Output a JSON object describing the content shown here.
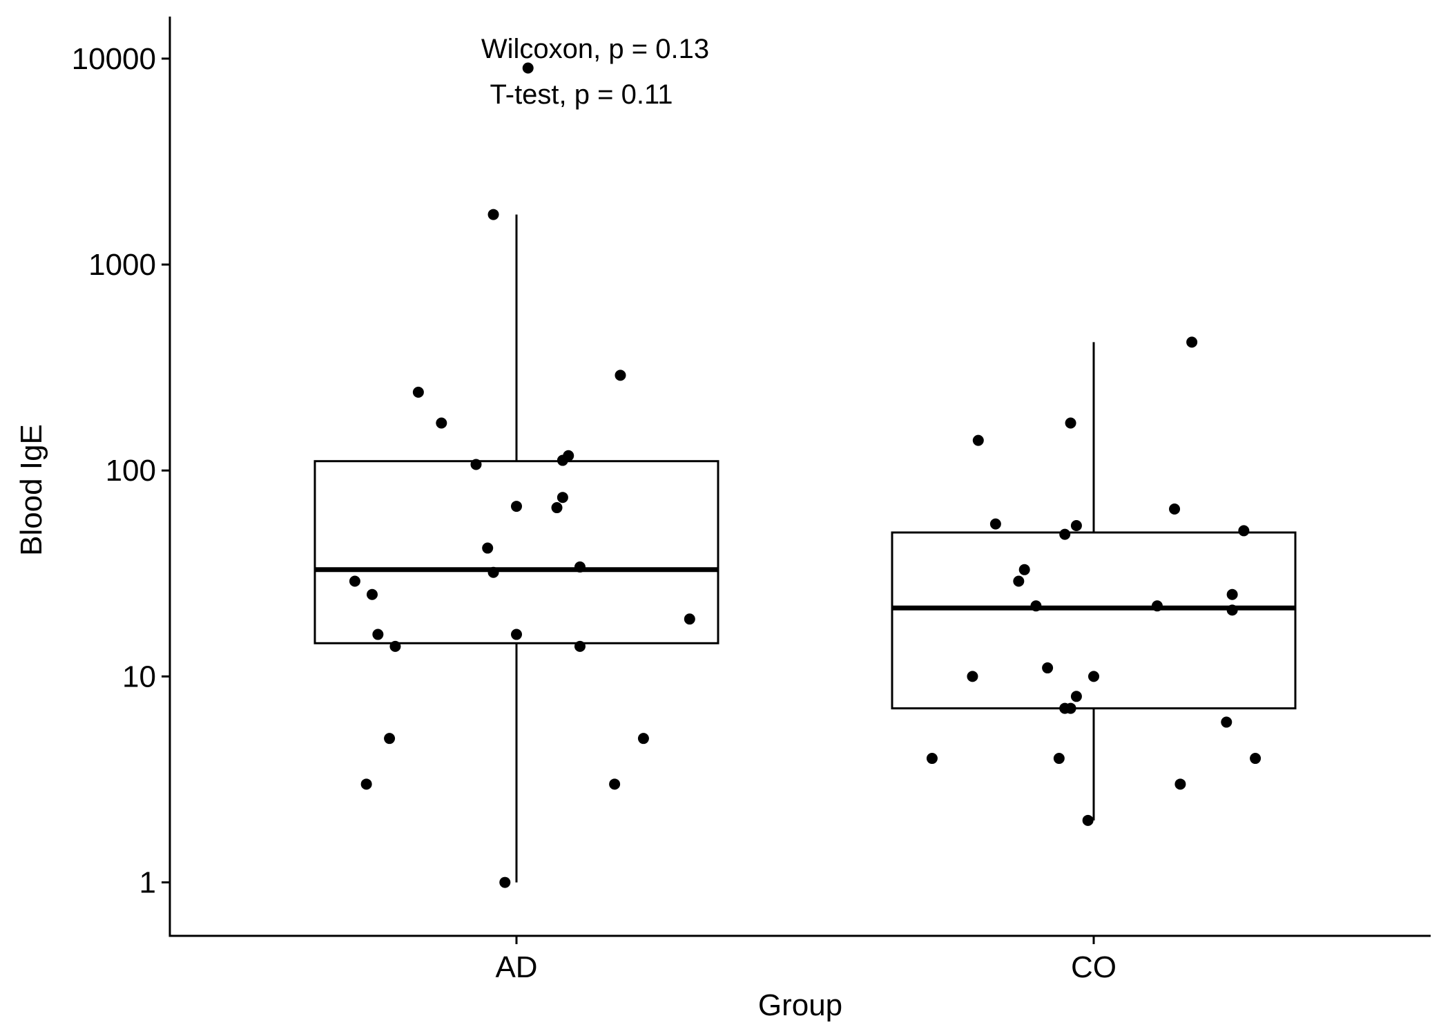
{
  "chart_data": {
    "type": "boxplot",
    "xlabel": "Group",
    "ylabel": "Blood IgE",
    "y_scale": "log10",
    "ylim": [
      0.55,
      16000
    ],
    "y_ticks": [
      {
        "value": 1,
        "label": "1"
      },
      {
        "value": 10,
        "label": "10"
      },
      {
        "value": 100,
        "label": "100"
      },
      {
        "value": 1000,
        "label": "1000"
      },
      {
        "value": 10000,
        "label": "10000"
      }
    ],
    "categories": [
      "AD",
      "CO"
    ],
    "annotations": [
      {
        "text": "Wilcoxon, p = 0.13"
      },
      {
        "text": "T-test, p = 0.11"
      }
    ],
    "groups": [
      {
        "name": "AD",
        "box": {
          "whisker_low": 1,
          "q1": 14.5,
          "median": 33,
          "q3": 111,
          "whisker_high": 1750
        },
        "points": [
          {
            "jitter": 0.02,
            "value": 9000
          },
          {
            "jitter": -0.04,
            "value": 1750
          },
          {
            "jitter": 0.18,
            "value": 290
          },
          {
            "jitter": -0.17,
            "value": 240
          },
          {
            "jitter": -0.13,
            "value": 170
          },
          {
            "jitter": 0.09,
            "value": 118
          },
          {
            "jitter": 0.08,
            "value": 112
          },
          {
            "jitter": -0.07,
            "value": 107
          },
          {
            "jitter": 0.08,
            "value": 74
          },
          {
            "jitter": 0.0,
            "value": 67
          },
          {
            "jitter": 0.07,
            "value": 66
          },
          {
            "jitter": -0.05,
            "value": 42
          },
          {
            "jitter": 0.11,
            "value": 34
          },
          {
            "jitter": -0.04,
            "value": 32
          },
          {
            "jitter": -0.28,
            "value": 29
          },
          {
            "jitter": -0.25,
            "value": 25
          },
          {
            "jitter": 0.3,
            "value": 19
          },
          {
            "jitter": -0.24,
            "value": 16
          },
          {
            "jitter": 0.0,
            "value": 16
          },
          {
            "jitter": -0.21,
            "value": 14
          },
          {
            "jitter": 0.11,
            "value": 14
          },
          {
            "jitter": -0.22,
            "value": 5
          },
          {
            "jitter": 0.22,
            "value": 5
          },
          {
            "jitter": -0.26,
            "value": 3
          },
          {
            "jitter": 0.17,
            "value": 3
          },
          {
            "jitter": -0.02,
            "value": 1
          }
        ]
      },
      {
        "name": "CO",
        "box": {
          "whisker_low": 2,
          "q1": 7,
          "median": 21.5,
          "q3": 50,
          "whisker_high": 420
        },
        "points": [
          {
            "jitter": 0.17,
            "value": 420
          },
          {
            "jitter": -0.04,
            "value": 170
          },
          {
            "jitter": -0.2,
            "value": 140
          },
          {
            "jitter": 0.14,
            "value": 65
          },
          {
            "jitter": -0.17,
            "value": 55
          },
          {
            "jitter": -0.03,
            "value": 54
          },
          {
            "jitter": 0.26,
            "value": 51
          },
          {
            "jitter": -0.05,
            "value": 49
          },
          {
            "jitter": -0.12,
            "value": 33
          },
          {
            "jitter": -0.13,
            "value": 29
          },
          {
            "jitter": 0.24,
            "value": 25
          },
          {
            "jitter": -0.1,
            "value": 22
          },
          {
            "jitter": 0.11,
            "value": 22
          },
          {
            "jitter": 0.24,
            "value": 21
          },
          {
            "jitter": -0.08,
            "value": 11
          },
          {
            "jitter": -0.21,
            "value": 10
          },
          {
            "jitter": 0.0,
            "value": 10
          },
          {
            "jitter": -0.03,
            "value": 8
          },
          {
            "jitter": -0.04,
            "value": 7
          },
          {
            "jitter": -0.05,
            "value": 7
          },
          {
            "jitter": 0.23,
            "value": 6
          },
          {
            "jitter": -0.28,
            "value": 4
          },
          {
            "jitter": -0.06,
            "value": 4
          },
          {
            "jitter": 0.28,
            "value": 4
          },
          {
            "jitter": 0.15,
            "value": 3
          },
          {
            "jitter": -0.01,
            "value": 2
          }
        ]
      }
    ]
  }
}
